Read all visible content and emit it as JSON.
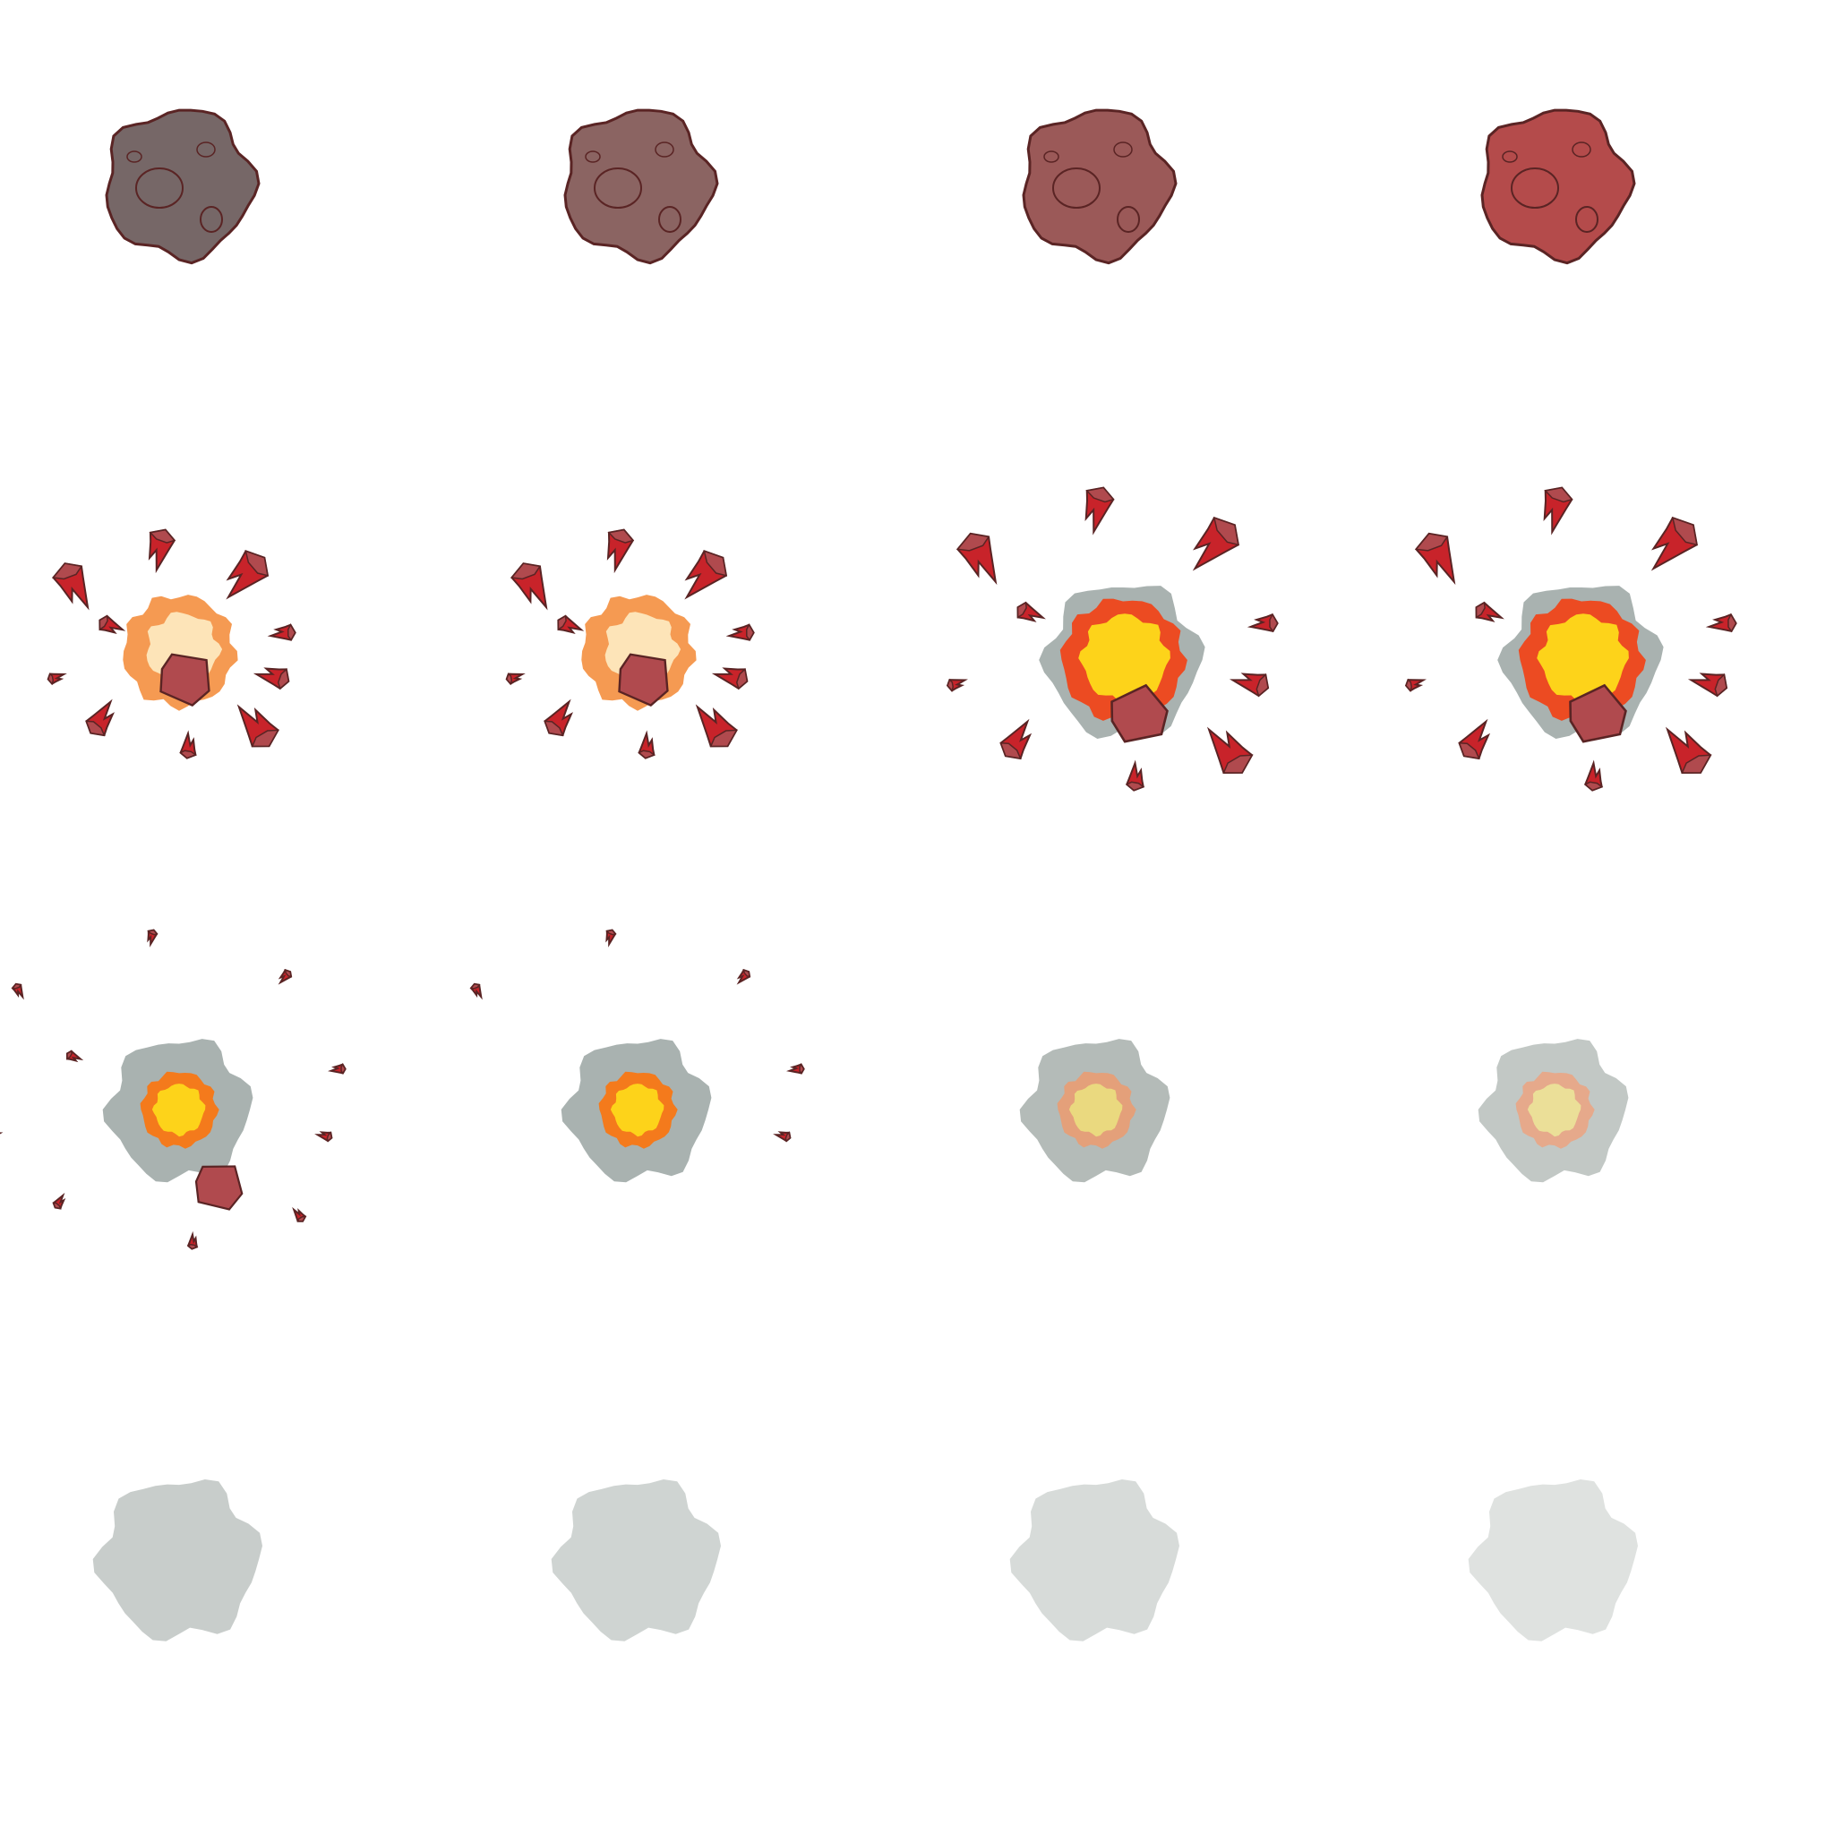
{
  "sprite_sheet": {
    "kind": "asteroid-explosion",
    "grid": {
      "columns": 4,
      "rows": 4
    },
    "palette": {
      "background": "#ffffff",
      "outline": "#5a2424",
      "shard_red": "#c8232a",
      "shard_body": "#b04a4e",
      "smoke_grey": "#a9b2b0",
      "fire_pale": "#fde4b8",
      "fire_orange_light": "#f59a52",
      "fire_orange": "#f47a1c",
      "fire_red_orange": "#ec4b22",
      "fire_yellow": "#fdd31a"
    },
    "frames": [
      {
        "stage": "asteroid",
        "body": "#766767"
      },
      {
        "stage": "asteroid",
        "body": "#8b6462"
      },
      {
        "stage": "asteroid",
        "body": "#9b5958"
      },
      {
        "stage": "asteroid",
        "body": "#b44b4b"
      },
      {
        "stage": "burst",
        "burst": "early"
      },
      {
        "stage": "burst",
        "burst": "early"
      },
      {
        "stage": "burst",
        "burst": "peak"
      },
      {
        "stage": "burst",
        "burst": "peak"
      },
      {
        "stage": "fireball",
        "smoke": "#a9b2b0",
        "fire_outer": "#f47a1c",
        "fire_inner": "#fdd31a",
        "debris": "many"
      },
      {
        "stage": "fireball",
        "smoke": "#a9b2b0",
        "fire_outer": "#f47a1c",
        "fire_inner": "#fdd31a",
        "debris": "few"
      },
      {
        "stage": "fireball",
        "smoke": "#b4bbb8",
        "fire_outer": "#e4a07a",
        "fire_inner": "#ead97f",
        "debris": "none"
      },
      {
        "stage": "fireball",
        "smoke": "#c2c8c5",
        "fire_outer": "#e6a98b",
        "fire_inner": "#ebdf98",
        "debris": "none"
      },
      {
        "stage": "smoke",
        "smoke": "#c8cdcb"
      },
      {
        "stage": "smoke",
        "smoke": "#cfd4d2"
      },
      {
        "stage": "smoke",
        "smoke": "#d7dbd9"
      },
      {
        "stage": "smoke",
        "smoke": "#dfe2e0"
      }
    ]
  }
}
